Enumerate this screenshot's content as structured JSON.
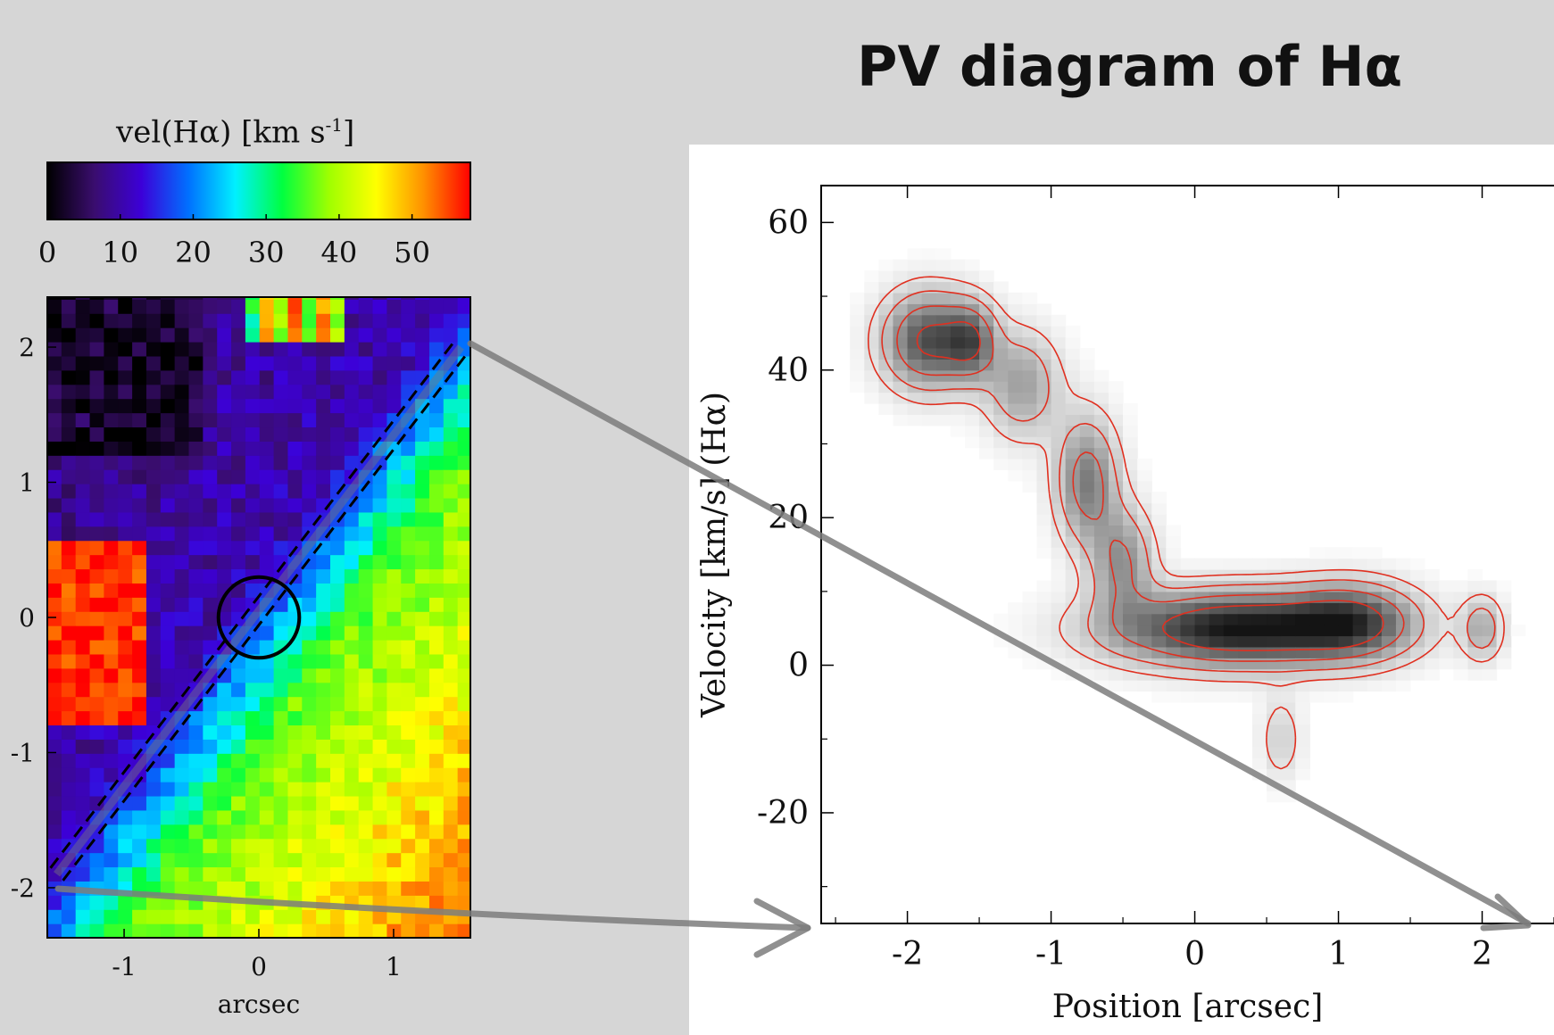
{
  "slide": {
    "title": "PV diagram of Hα"
  },
  "colorbar": {
    "label": "vel(Hα) [km s",
    "label_sup": "-1",
    "label_close": "]",
    "ticks": [
      0,
      10,
      20,
      30,
      40,
      50
    ],
    "range": [
      0,
      58
    ],
    "stops": [
      "#000000",
      "#3a0d6e",
      "#3c00d8",
      "#0070ff",
      "#00f0ff",
      "#00ff40",
      "#a0ff00",
      "#ffff00",
      "#ff9000",
      "#ff0000"
    ]
  },
  "chart_data": [
    {
      "type": "heatmap",
      "xlabel": "arcsec",
      "ylabel": "",
      "xlim": [
        -1.57,
        1.57
      ],
      "ylim": [
        -2.37,
        2.37
      ],
      "xticks": [
        -1,
        0,
        1
      ],
      "yticks": [
        -2,
        -1,
        0,
        1,
        2
      ],
      "cell_size": 0.105,
      "value": "vel(Hα) [km s-1]",
      "slit": {
        "x1": -1.5,
        "y1": -1.9,
        "x2": 1.5,
        "y2": 2.0
      },
      "aperture": {
        "cx": 0,
        "cy": 0,
        "r": 0.3
      }
    },
    {
      "type": "heatmap",
      "xlabel": "Position [arcsec]",
      "ylabel": "Velocity [km/s] (Hα)",
      "xlim": [
        -2.6,
        2.5
      ],
      "ylim": [
        -35,
        65
      ],
      "xticks": [
        -2,
        -1,
        0,
        1,
        2
      ],
      "yticks": [
        -20,
        0,
        20,
        40,
        60
      ],
      "contour_color": "#e03020",
      "components": [
        {
          "x": -1.85,
          "y": 44,
          "sx": 0.22,
          "sy": 4.5,
          "amp": 0.75
        },
        {
          "x": -1.55,
          "y": 44,
          "sx": 0.12,
          "sy": 3.5,
          "amp": 0.5
        },
        {
          "x": -1.2,
          "y": 38,
          "sx": 0.18,
          "sy": 5,
          "amp": 0.4
        },
        {
          "x": -0.75,
          "y": 25,
          "sx": 0.15,
          "sy": 6,
          "amp": 0.55
        },
        {
          "x": -0.5,
          "y": 14,
          "sx": 0.15,
          "sy": 5,
          "amp": 0.45
        },
        {
          "x": 0.3,
          "y": 5,
          "sx": 0.6,
          "sy": 3.5,
          "amp": 1.0
        },
        {
          "x": 1.1,
          "y": 6,
          "sx": 0.3,
          "sy": 3.5,
          "amp": 0.6
        },
        {
          "x": 2.0,
          "y": 5,
          "sx": 0.1,
          "sy": 3,
          "amp": 0.35
        },
        {
          "x": 0.6,
          "y": -10,
          "sx": 0.1,
          "sy": 4,
          "amp": 0.2
        }
      ]
    }
  ]
}
